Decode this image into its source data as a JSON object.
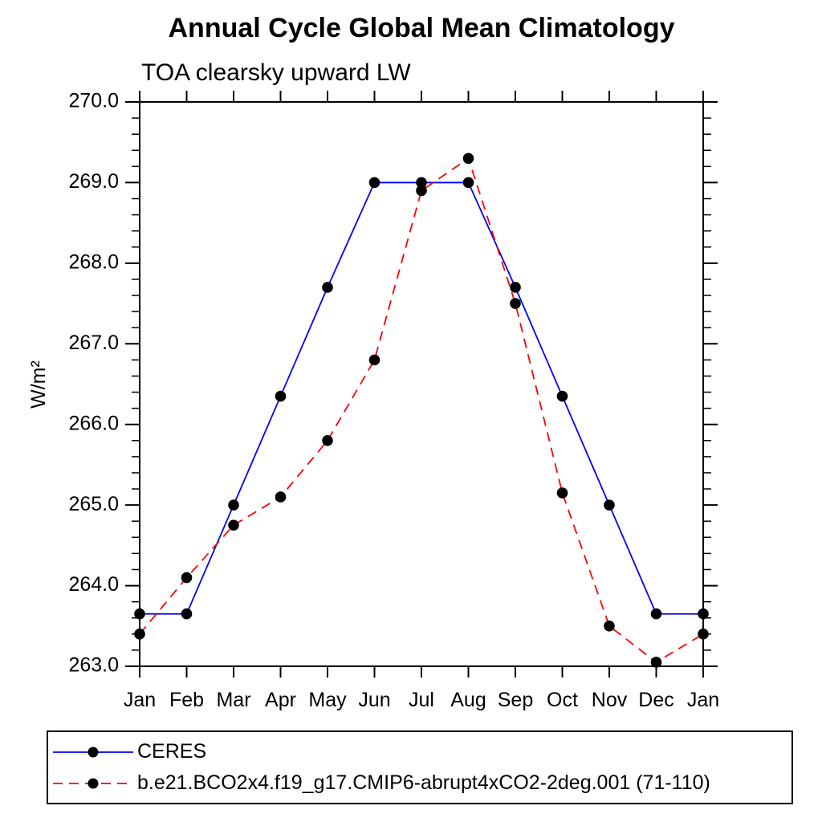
{
  "chart_data": {
    "type": "line",
    "title": "Annual Cycle Global Mean Climatology",
    "subtitle": "TOA clearsky upward LW",
    "ylabel": "W/m²",
    "categories": [
      "Jan",
      "Feb",
      "Mar",
      "Apr",
      "May",
      "Jun",
      "Jul",
      "Aug",
      "Sep",
      "Oct",
      "Nov",
      "Dec",
      "Jan"
    ],
    "ylim": [
      263.0,
      270.0
    ],
    "ytick_major_interval": 1.0,
    "ytick_minor_interval": 0.2,
    "ytick_labels": [
      "263.0",
      "264.0",
      "265.0",
      "266.0",
      "267.0",
      "268.0",
      "269.0",
      "270.0"
    ],
    "grid": false,
    "legend_position": "bottom-left-box",
    "series": [
      {
        "name": "CERES",
        "line_color": "#0000ff",
        "line_style": "solid",
        "marker": "filled-circle",
        "marker_color": "#000000",
        "values": [
          263.65,
          263.65,
          265.0,
          266.35,
          267.7,
          269.0,
          269.0,
          269.0,
          267.7,
          266.35,
          265.0,
          263.65,
          263.65
        ]
      },
      {
        "name": "b.e21.BCO2x4.f19_g17.CMIP6-abrupt4xCO2-2deg.001 (71-110)",
        "line_color": "#ff0000",
        "line_style": "dashed",
        "marker": "filled-circle",
        "marker_color": "#000000",
        "values": [
          263.4,
          264.1,
          264.75,
          265.1,
          265.8,
          266.8,
          268.9,
          269.3,
          267.5,
          265.15,
          263.5,
          263.05,
          263.4
        ]
      }
    ]
  }
}
